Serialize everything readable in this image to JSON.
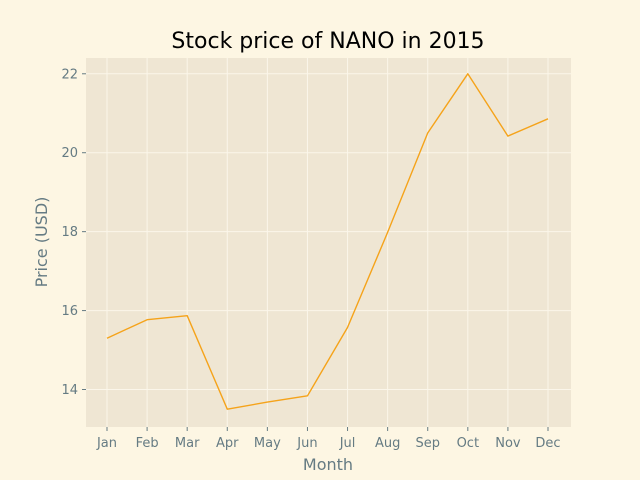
{
  "chart_data": {
    "type": "line",
    "title": "Stock price of NANO in 2015",
    "xlabel": "Month",
    "ylabel": "Price (USD)",
    "categories": [
      "Jan",
      "Feb",
      "Mar",
      "Apr",
      "May",
      "Jun",
      "Jul",
      "Aug",
      "Sep",
      "Oct",
      "Nov",
      "Dec"
    ],
    "series": [
      {
        "values": [
          15.3,
          15.77,
          15.87,
          13.5,
          13.68,
          13.84,
          15.57,
          17.98,
          20.5,
          22.0,
          20.42,
          20.86
        ],
        "color": "#f5a31a"
      }
    ],
    "ylim": [
      13.05,
      22.4
    ],
    "yticks": [
      14,
      16,
      18,
      20,
      22
    ],
    "grid": true,
    "legend": "none",
    "colors": {
      "page_background": "#fdf6e3",
      "plot_background": "#efe6d3",
      "grid": "#fbf6ea",
      "text": "#657b83"
    }
  }
}
